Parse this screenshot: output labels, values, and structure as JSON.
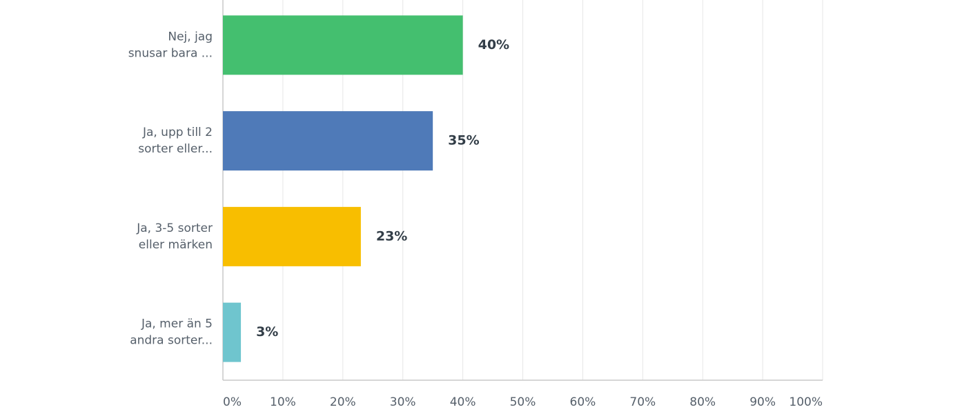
{
  "chart_data": {
    "type": "hbar",
    "categories": [
      [
        "Nej, jag",
        "snusar bara ..."
      ],
      [
        "Ja, upp till 2",
        "sorter eller..."
      ],
      [
        "Ja, 3-5 sorter",
        "eller märken"
      ],
      [
        "Ja, mer än 5",
        "andra sorter..."
      ]
    ],
    "values": [
      40,
      35,
      23,
      3
    ],
    "value_labels": [
      "40%",
      "35%",
      "23%",
      "3%"
    ],
    "colors": [
      "#44bf6f",
      "#4f7ab8",
      "#f8be00",
      "#6fc5ce"
    ],
    "xlim": [
      0,
      100
    ],
    "xticks": [
      {
        "value": 0,
        "label": "0%"
      },
      {
        "value": 10,
        "label": "10%"
      },
      {
        "value": 20,
        "label": "20%"
      },
      {
        "value": 30,
        "label": "30%"
      },
      {
        "value": 40,
        "label": "40%"
      },
      {
        "value": 50,
        "label": "50%"
      },
      {
        "value": 60,
        "label": "60%"
      },
      {
        "value": 70,
        "label": "70%"
      },
      {
        "value": 80,
        "label": "80%"
      },
      {
        "value": 90,
        "label": "90%"
      },
      {
        "value": 100,
        "label": "100%"
      }
    ],
    "grid": true
  }
}
